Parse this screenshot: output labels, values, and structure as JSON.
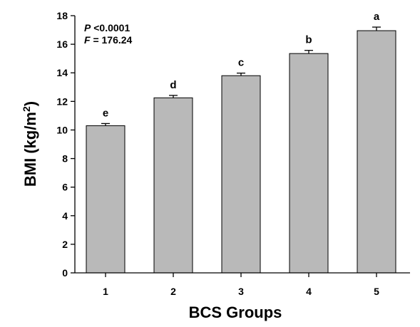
{
  "chart_data": {
    "type": "bar",
    "categories": [
      "1",
      "2",
      "3",
      "4",
      "5"
    ],
    "values": [
      10.3,
      12.25,
      13.8,
      15.35,
      16.95
    ],
    "errors": [
      0.15,
      0.17,
      0.18,
      0.22,
      0.25
    ],
    "letters": [
      "e",
      "d",
      "c",
      "b",
      "a"
    ],
    "xlabel": "BCS Groups",
    "ylabel_main": "BMI (kg/m",
    "ylabel_sup": "2",
    "ylabel_tail": ")",
    "ylim": [
      0,
      18
    ],
    "yticks": [
      "0",
      "2",
      "4",
      "6",
      "8",
      "10",
      "12",
      "14",
      "16",
      "18"
    ],
    "stats": {
      "p_symbol": "P",
      "p_value": " <0.0001",
      "f_symbol": "F",
      "f_value": " = 176.24"
    },
    "grid": false,
    "legend": "none"
  }
}
